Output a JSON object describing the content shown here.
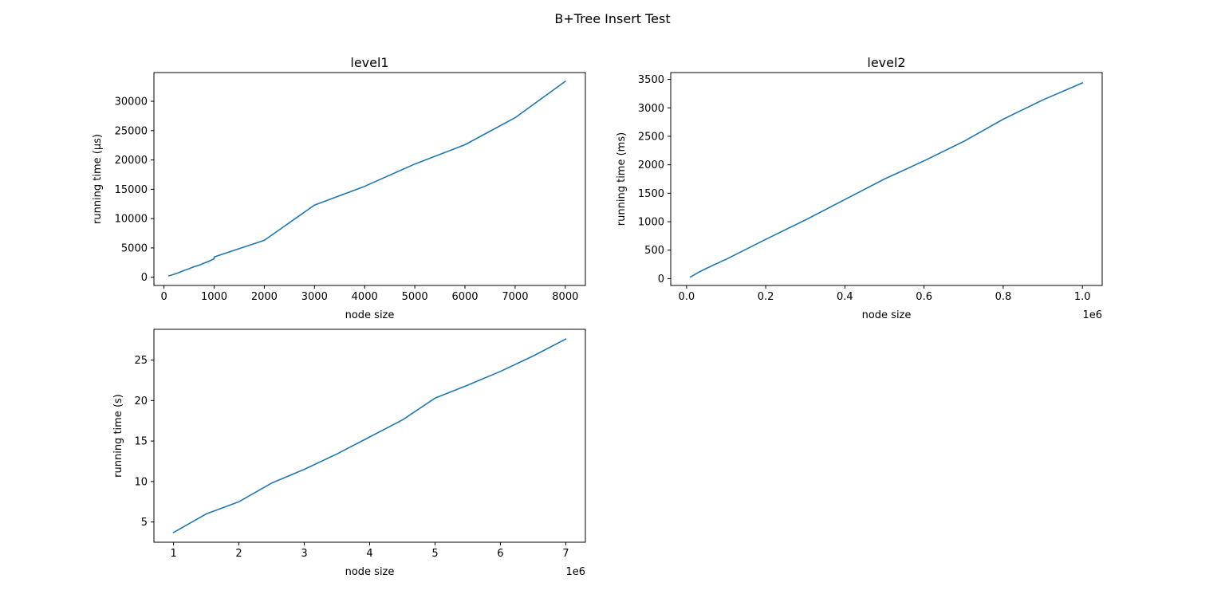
{
  "figure": {
    "suptitle": "B+Tree Insert Test"
  },
  "colors": {
    "line": "#1f77b4",
    "axes": "#000000",
    "background": "#ffffff"
  },
  "chart_data": [
    {
      "type": "line",
      "title": "level1",
      "xlabel": "node size",
      "ylabel": "running time (µs)",
      "offset_text": "",
      "xlim": [
        -200,
        8400
      ],
      "ylim": [
        -1400,
        34900
      ],
      "xticks": [
        0,
        1000,
        2000,
        3000,
        4000,
        5000,
        6000,
        7000,
        8000
      ],
      "xtick_labels": [
        "0",
        "1000",
        "2000",
        "3000",
        "4000",
        "5000",
        "6000",
        "7000",
        "8000"
      ],
      "yticks": [
        0,
        5000,
        10000,
        15000,
        20000,
        25000,
        30000
      ],
      "ytick_labels": [
        "0",
        "5000",
        "10000",
        "15000",
        "20000",
        "25000",
        "30000"
      ],
      "grid": false,
      "series": [
        {
          "x": [
            100,
            200,
            300,
            400,
            500,
            600,
            700,
            800,
            900,
            1000,
            1000,
            2000,
            3000,
            4000,
            5000,
            6000,
            7000,
            8000
          ],
          "y": [
            250,
            500,
            800,
            1150,
            1450,
            1800,
            2050,
            2400,
            2750,
            3150,
            3450,
            6300,
            12300,
            15500,
            19300,
            22600,
            27200,
            33400
          ]
        }
      ]
    },
    {
      "type": "line",
      "title": "level2",
      "xlabel": "node size",
      "ylabel": "running time (ms)",
      "offset_text": "1e6",
      "xlim": [
        -0.04,
        1.05
      ],
      "ylim": [
        -120,
        3620
      ],
      "xticks": [
        0,
        0.2,
        0.4,
        0.6,
        0.8,
        1.0
      ],
      "xtick_labels": [
        "0.0",
        "0.2",
        "0.4",
        "0.6",
        "0.8",
        "1.0"
      ],
      "yticks": [
        0,
        500,
        1000,
        1500,
        2000,
        2500,
        3000,
        3500
      ],
      "ytick_labels": [
        "0",
        "500",
        "1000",
        "1500",
        "2000",
        "2500",
        "3000",
        "3500"
      ],
      "grid": false,
      "series": [
        {
          "x": [
            0.01,
            0.02,
            0.03,
            0.04,
            0.05,
            0.06,
            0.07,
            0.08,
            0.09,
            0.1,
            0.2,
            0.3,
            0.4,
            0.5,
            0.6,
            0.7,
            0.8,
            0.9,
            1.0
          ],
          "y": [
            30,
            70,
            110,
            145,
            180,
            210,
            245,
            275,
            310,
            340,
            690,
            1030,
            1390,
            1750,
            2070,
            2410,
            2800,
            3140,
            3440
          ]
        }
      ]
    },
    {
      "type": "line",
      "title": "",
      "xlabel": "node size",
      "ylabel": "running time (s)",
      "offset_text": "1e6",
      "xlim": [
        0.7,
        7.3
      ],
      "ylim": [
        2.5,
        28.8
      ],
      "xticks": [
        1,
        2,
        3,
        4,
        5,
        6,
        7
      ],
      "xtick_labels": [
        "1",
        "2",
        "3",
        "4",
        "5",
        "6",
        "7"
      ],
      "yticks": [
        5,
        10,
        15,
        20,
        25
      ],
      "ytick_labels": [
        "5",
        "10",
        "15",
        "20",
        "25"
      ],
      "grid": false,
      "series": [
        {
          "x": [
            1,
            1.5,
            2,
            2.5,
            3,
            3.5,
            4,
            4.5,
            5,
            5.5,
            6,
            6.5,
            7
          ],
          "y": [
            3.7,
            6.0,
            7.5,
            9.8,
            11.5,
            13.4,
            15.5,
            17.6,
            20.3,
            21.9,
            23.6,
            25.5,
            27.6
          ]
        }
      ]
    }
  ]
}
